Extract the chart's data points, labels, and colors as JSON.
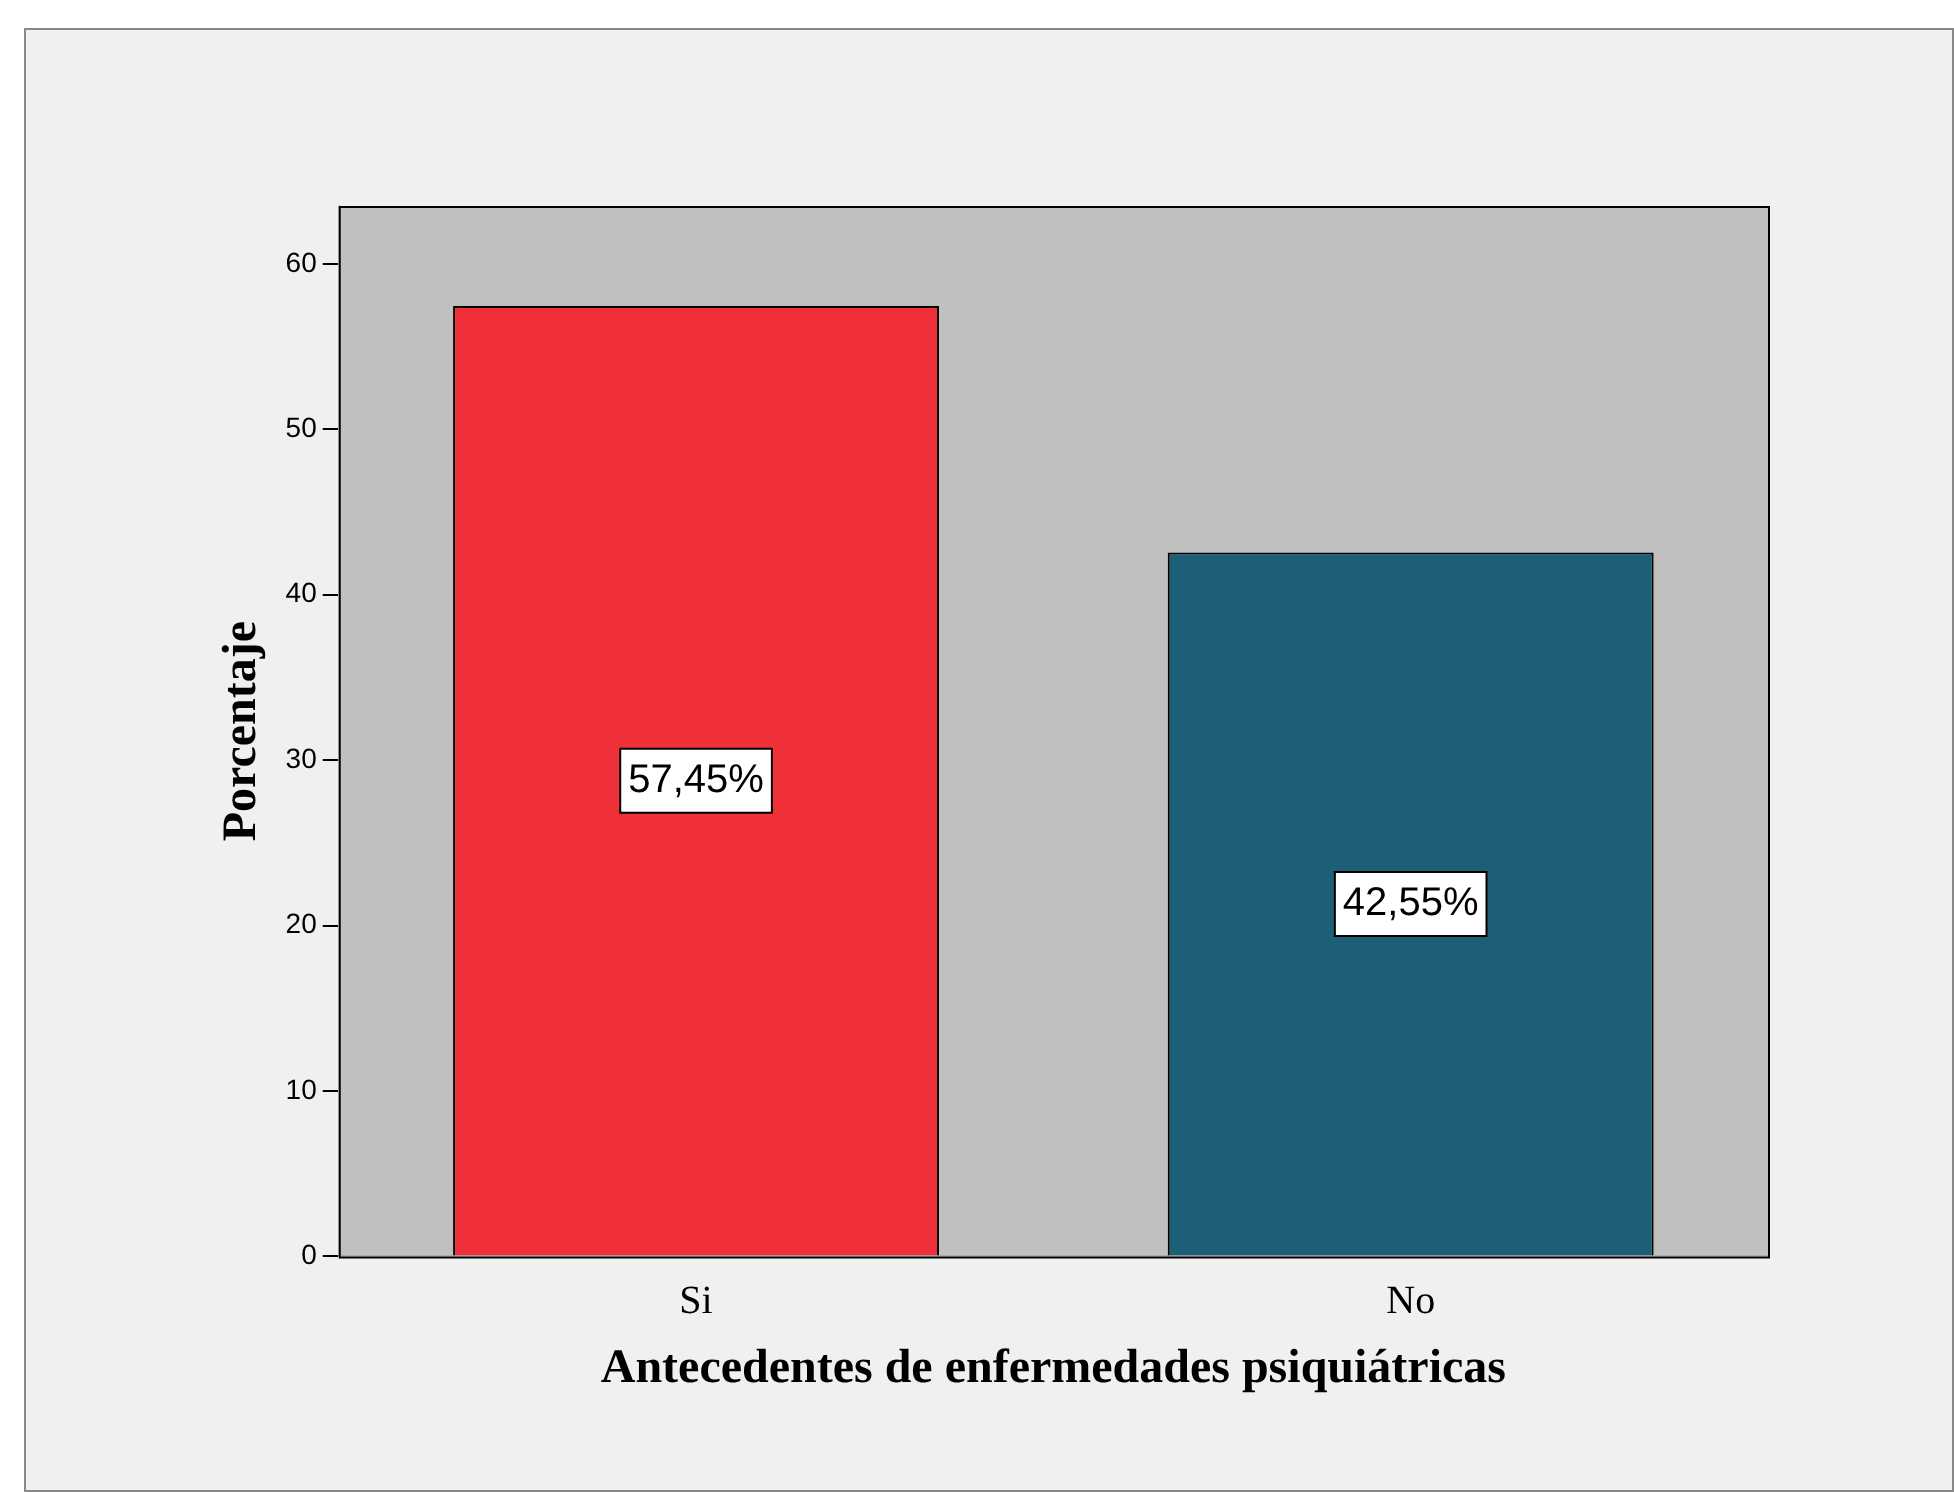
{
  "chart_data": {
    "type": "bar",
    "xlabel": "Antecedentes de enfermedades psiquiátricas",
    "ylabel": "Porcentaje",
    "categories": [
      "Si",
      "No"
    ],
    "values": [
      57.45,
      42.55
    ],
    "colors": [
      "#f03039",
      "#1e5f78"
    ],
    "value_labels": [
      "57,45%",
      "42,55%"
    ],
    "ylim": [
      0,
      63.5
    ],
    "yticks": [
      0,
      10,
      20,
      30,
      40,
      50,
      60
    ],
    "grid": false,
    "legend": false
  }
}
